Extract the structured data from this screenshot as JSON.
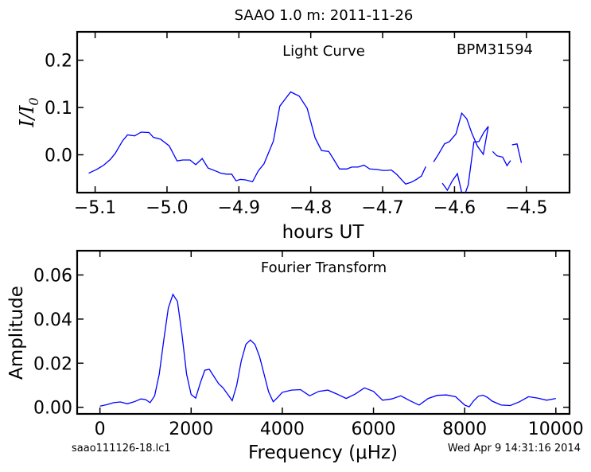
{
  "figure": {
    "suptitle": "SAAO 1.0 m:  2011-11-26",
    "footer_left": "saao111126-18.lc1",
    "footer_right": "Wed Apr  9 14:31:16 2014"
  },
  "chart_data": [
    {
      "type": "line",
      "title": "Light Curve",
      "annotation": "BPM31594",
      "xlabel": "hours UT",
      "ylabel": "I/I0",
      "xlim": [
        -5.125,
        -4.44
      ],
      "ylim": [
        -0.08,
        0.26
      ],
      "xticks": [
        -5.1,
        -5.0,
        -4.9,
        -4.8,
        -4.7,
        -4.6,
        -4.5
      ],
      "xtick_labels": [
        "−5.1",
        "−5.0",
        "−4.9",
        "−4.8",
        "−4.7",
        "−4.6",
        "−4.5"
      ],
      "yticks": [
        0.0,
        0.1,
        0.2
      ],
      "ytick_labels": [
        "0.0",
        "0.1",
        "0.2"
      ],
      "grid": false,
      "color": "#0000ff",
      "segments": [
        {
          "x": [
            -5.109,
            -5.098,
            -5.088,
            -5.079,
            -5.072,
            -5.062,
            -5.055,
            -5.045,
            -5.036,
            -5.025,
            -5.019,
            -5.009,
            -4.997,
            -4.986,
            -4.978,
            -4.968,
            -4.96,
            -4.951,
            -4.943,
            -4.931,
            -4.925,
            -4.917,
            -4.91,
            -4.904,
            -4.898,
            -4.891,
            -4.881,
            -4.873,
            -4.865,
            -4.852,
            -4.843,
            -4.828,
            -4.816,
            -4.805,
            -4.794,
            -4.785,
            -4.775,
            -4.768,
            -4.76,
            -4.75,
            -4.743,
            -4.734,
            -4.726,
            -4.718,
            -4.708,
            -4.7,
            -4.693,
            -4.688,
            -4.68,
            -4.674,
            -4.668,
            -4.66,
            -4.653,
            -4.646,
            -4.64
          ],
          "y": [
            -0.039,
            -0.031,
            -0.022,
            -0.01,
            0.003,
            0.029,
            0.042,
            0.04,
            0.048,
            0.047,
            0.037,
            0.033,
            0.019,
            -0.013,
            -0.011,
            -0.011,
            -0.021,
            -0.008,
            -0.028,
            -0.035,
            -0.039,
            -0.041,
            -0.041,
            -0.055,
            -0.052,
            -0.053,
            -0.057,
            -0.034,
            -0.019,
            0.029,
            0.103,
            0.133,
            0.124,
            0.098,
            0.036,
            0.009,
            0.007,
            -0.01,
            -0.03,
            -0.03,
            -0.026,
            -0.026,
            -0.022,
            -0.03,
            -0.031,
            -0.033,
            -0.033,
            -0.032,
            -0.042,
            -0.052,
            -0.062,
            -0.058,
            -0.052,
            -0.045,
            -0.025
          ]
        },
        {
          "x": [
            -4.629,
            -4.622,
            -4.614,
            -4.607,
            -4.598,
            -4.59,
            -4.583,
            -4.576,
            -4.568,
            -4.56,
            -4.553
          ],
          "y": [
            -0.015,
            0.002,
            0.023,
            0.028,
            0.044,
            0.088,
            0.076,
            0.046,
            0.018,
            0.001,
            0.06
          ]
        },
        {
          "x": [
            -4.547,
            -4.541,
            -4.533,
            -4.527,
            -4.522
          ],
          "y": [
            0.007,
            -0.002,
            -0.005,
            -0.023,
            -0.012
          ]
        },
        {
          "x": [
            -4.617,
            -4.61,
            -4.603,
            -4.596,
            -4.588,
            -4.581,
            -4.573,
            -4.566,
            -4.559,
            -4.553
          ],
          "y": [
            -0.06,
            -0.075,
            -0.055,
            -0.04,
            -0.093,
            -0.064,
            0.027,
            0.028,
            0.048,
            0.06
          ]
        },
        {
          "x": [
            -4.52,
            -4.513,
            -4.507
          ],
          "y": [
            0.021,
            0.023,
            -0.017
          ]
        }
      ]
    },
    {
      "type": "line",
      "title": "Fourier Transform",
      "xlabel": "Frequency (μHz)",
      "ylabel": "Amplitude",
      "xlim": [
        -500,
        10300
      ],
      "ylim": [
        -0.003,
        0.071
      ],
      "xticks": [
        0,
        2000,
        4000,
        6000,
        8000,
        10000
      ],
      "xtick_labels": [
        "0",
        "2000",
        "4000",
        "6000",
        "8000",
        "10000"
      ],
      "yticks": [
        0.0,
        0.02,
        0.04,
        0.06
      ],
      "ytick_labels": [
        "0.00",
        "0.02",
        "0.04",
        "0.06"
      ],
      "grid": false,
      "color": "#0000ff",
      "x": [
        0,
        150,
        300,
        450,
        600,
        750,
        900,
        1000,
        1100,
        1200,
        1300,
        1400,
        1500,
        1600,
        1700,
        1800,
        1900,
        2000,
        2100,
        2200,
        2300,
        2400,
        2500,
        2600,
        2700,
        2800,
        2900,
        3000,
        3100,
        3200,
        3300,
        3400,
        3500,
        3600,
        3700,
        3800,
        3900,
        4000,
        4200,
        4400,
        4600,
        4800,
        5000,
        5200,
        5400,
        5600,
        5800,
        6000,
        6200,
        6400,
        6600,
        6800,
        7000,
        7200,
        7400,
        7600,
        7800,
        8000,
        8100,
        8200,
        8300,
        8400,
        8500,
        8600,
        8800,
        9000,
        9200,
        9400,
        9600,
        9800,
        10000
      ],
      "y": [
        0.0005,
        0.0012,
        0.0021,
        0.0024,
        0.0016,
        0.0025,
        0.0038,
        0.0035,
        0.0021,
        0.0052,
        0.015,
        0.0305,
        0.045,
        0.0512,
        0.048,
        0.033,
        0.015,
        0.0058,
        0.0042,
        0.011,
        0.0168,
        0.0172,
        0.014,
        0.0108,
        0.0088,
        0.006,
        0.003,
        0.01,
        0.021,
        0.0285,
        0.0305,
        0.0285,
        0.023,
        0.015,
        0.007,
        0.0025,
        0.0045,
        0.0068,
        0.0078,
        0.008,
        0.0052,
        0.0072,
        0.0078,
        0.006,
        0.004,
        0.006,
        0.0088,
        0.0072,
        0.0032,
        0.0038,
        0.0052,
        0.003,
        0.001,
        0.004,
        0.0054,
        0.0056,
        0.0048,
        0.001,
        0.0002,
        0.003,
        0.005,
        0.0055,
        0.0045,
        0.0028,
        0.001,
        0.0008,
        0.0025,
        0.0048,
        0.0042,
        0.0032,
        0.004
      ]
    }
  ]
}
